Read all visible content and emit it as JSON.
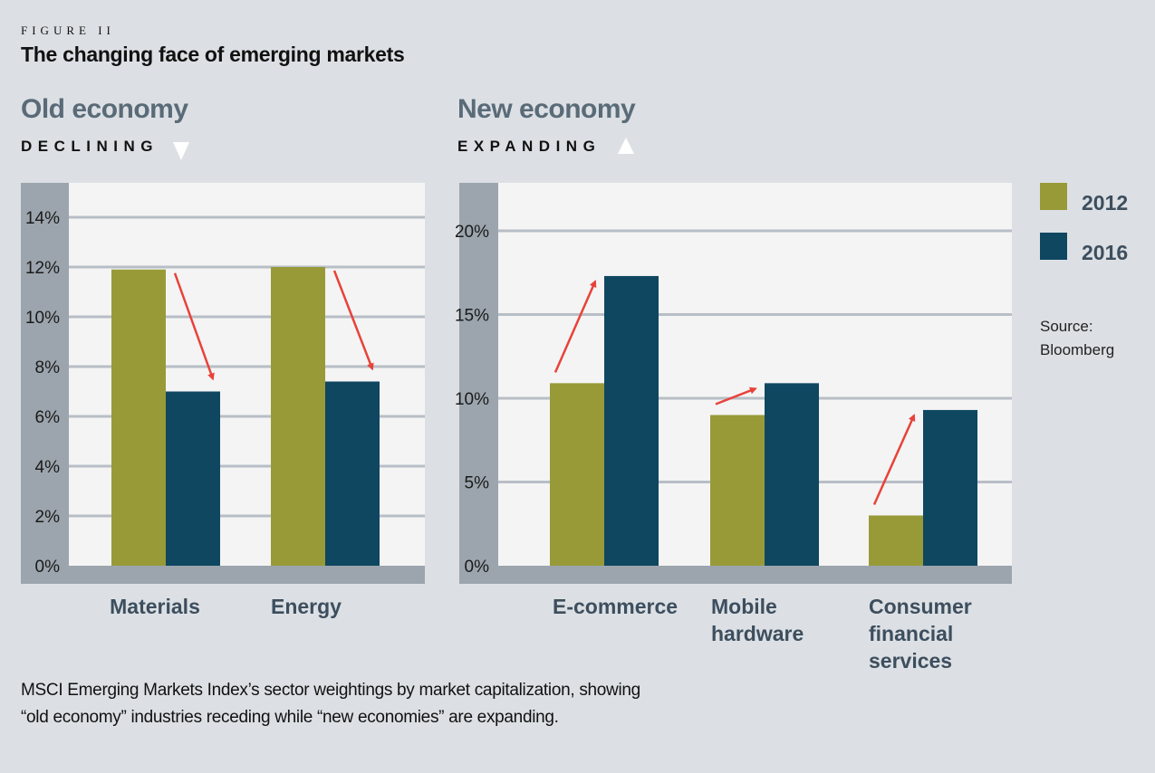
{
  "figure_label": "FIGURE II",
  "figure_title": "The changing face of emerging markets",
  "panels": {
    "old": {
      "title": "Old economy",
      "trend": "DECLINING",
      "trend_icon": "triangle-down-icon"
    },
    "new": {
      "title": "New economy",
      "trend": "EXPANDING",
      "trend_icon": "triangle-up-icon"
    }
  },
  "legend": [
    {
      "label": "2012",
      "color": "#989a38"
    },
    {
      "label": "2016",
      "color": "#0f4761"
    }
  ],
  "source": {
    "line1": "Source:",
    "line2": "Bloomberg"
  },
  "caption": {
    "line1": "MSCI Emerging Markets Index’s sector weightings by market capitalization, showing",
    "line2": "“old economy” industries receding while “new economies” are expanding."
  },
  "colors": {
    "series_2012": "#989a38",
    "series_2016": "#0f4761",
    "arrow": "#e8423a",
    "axis_band": "#9ca5ad",
    "plot_bg": "#f4f4f4",
    "grid": "#b8bec6"
  },
  "chart_data": [
    {
      "type": "bar",
      "title": "Old economy",
      "subtitle": "DECLINING",
      "categories": [
        "Materials",
        "Energy"
      ],
      "category_lines": [
        [
          "Materials"
        ],
        [
          "Energy"
        ]
      ],
      "series": [
        {
          "name": "2012",
          "values": [
            11.9,
            12.0
          ]
        },
        {
          "name": "2016",
          "values": [
            7.0,
            7.4
          ]
        }
      ],
      "yticks": [
        0,
        2,
        4,
        6,
        8,
        10,
        12,
        14
      ],
      "ytick_labels": [
        "0%",
        "2%",
        "4%",
        "6%",
        "8%",
        "10%",
        "12%",
        "14%"
      ],
      "ylim": [
        0,
        14
      ],
      "xlabel": "",
      "ylabel": "",
      "grid": true,
      "annotations": "red arrows pointing down from 2012 to 2016 bars"
    },
    {
      "type": "bar",
      "title": "New economy",
      "subtitle": "EXPANDING",
      "categories": [
        "E-commerce",
        "Mobile hardware",
        "Consumer financial services"
      ],
      "category_lines": [
        [
          "E-commerce"
        ],
        [
          "Mobile",
          "hardware"
        ],
        [
          "Consumer",
          "financial",
          "services"
        ]
      ],
      "series": [
        {
          "name": "2012",
          "values": [
            10.9,
            9.0,
            3.0
          ]
        },
        {
          "name": "2016",
          "values": [
            17.3,
            10.9,
            9.3
          ]
        }
      ],
      "yticks": [
        0,
        5,
        10,
        15,
        20
      ],
      "ytick_labels": [
        "0%",
        "5%",
        "10%",
        "15%",
        "20%"
      ],
      "ylim": [
        0,
        20
      ],
      "xlabel": "",
      "ylabel": "",
      "grid": true,
      "legend": "right",
      "annotations": "red arrows pointing up from 2012 to 2016 bars"
    }
  ]
}
